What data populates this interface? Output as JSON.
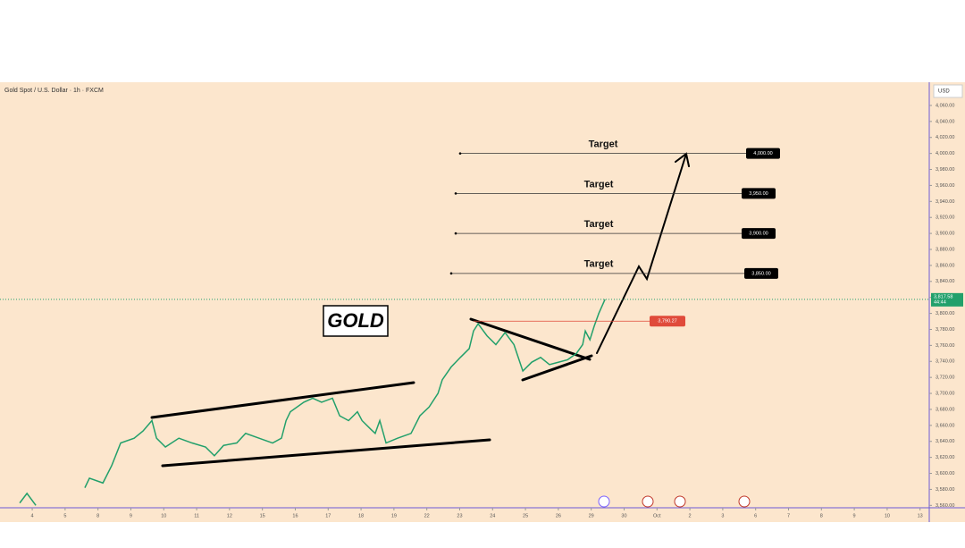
{
  "header": {
    "title": "Gold Spot / U.S. Dollar · 1h · FXCM",
    "currency": "USD"
  },
  "annotation": "GOLD",
  "chart_data": {
    "type": "line",
    "xlim": [
      -0.98,
      27.28
    ],
    "ylim": [
      3557,
      4089
    ],
    "xticks": [
      {
        "value": 0,
        "label": "4"
      },
      {
        "value": 1,
        "label": "5"
      },
      {
        "value": 2,
        "label": "8"
      },
      {
        "value": 3,
        "label": "9"
      },
      {
        "value": 4,
        "label": "10"
      },
      {
        "value": 5,
        "label": "11"
      },
      {
        "value": 6,
        "label": "12"
      },
      {
        "value": 7,
        "label": "15"
      },
      {
        "value": 8,
        "label": "16"
      },
      {
        "value": 9,
        "label": "17"
      },
      {
        "value": 10,
        "label": "18"
      },
      {
        "value": 11,
        "label": "19"
      },
      {
        "value": 12,
        "label": "22"
      },
      {
        "value": 13,
        "label": "23"
      },
      {
        "value": 14,
        "label": "24"
      },
      {
        "value": 15,
        "label": "25"
      },
      {
        "value": 16,
        "label": "26"
      },
      {
        "value": 17,
        "label": "29"
      },
      {
        "value": 18,
        "label": "30"
      },
      {
        "value": 19,
        "label": "Oct"
      },
      {
        "value": 20,
        "label": "2"
      },
      {
        "value": 21,
        "label": "3"
      },
      {
        "value": 22,
        "label": "6"
      },
      {
        "value": 23,
        "label": "7"
      },
      {
        "value": 24,
        "label": "8"
      },
      {
        "value": 25,
        "label": "9"
      },
      {
        "value": 26,
        "label": "10"
      },
      {
        "value": 27,
        "label": "13"
      }
    ],
    "yticks": [
      {
        "value": 3560,
        "label": "3,560.00"
      },
      {
        "value": 3580,
        "label": "3,580.00"
      },
      {
        "value": 3600,
        "label": "3,600.00"
      },
      {
        "value": 3620,
        "label": "3,620.00"
      },
      {
        "value": 3640,
        "label": "3,640.00"
      },
      {
        "value": 3660,
        "label": "3,660.00"
      },
      {
        "value": 3680,
        "label": "3,680.00"
      },
      {
        "value": 3700,
        "label": "3,700.00"
      },
      {
        "value": 3720,
        "label": "3,720.00"
      },
      {
        "value": 3740,
        "label": "3,740.00"
      },
      {
        "value": 3760,
        "label": "3,760.00"
      },
      {
        "value": 3780,
        "label": "3,780.00"
      },
      {
        "value": 3800,
        "label": "3,800.00"
      },
      {
        "value": 3820,
        "label": "3,820.00"
      },
      {
        "value": 3840,
        "label": "3,840.00"
      },
      {
        "value": 3860,
        "label": "3,860.00"
      },
      {
        "value": 3880,
        "label": "3,880.00"
      },
      {
        "value": 3900,
        "label": "3,900.00"
      },
      {
        "value": 3920,
        "label": "3,920.00"
      },
      {
        "value": 3940,
        "label": "3,940.00"
      },
      {
        "value": 3960,
        "label": "3,960.00"
      },
      {
        "value": 3980,
        "label": "3,980.00"
      },
      {
        "value": 4000,
        "label": "4,000.00"
      },
      {
        "value": 4020,
        "label": "4,020.00"
      },
      {
        "value": 4040,
        "label": "4,040.00"
      },
      {
        "value": 4060,
        "label": "4,060.00"
      }
    ],
    "series": [
      {
        "color": "#22a06b",
        "x": [
          -0.38,
          -0.16,
          0.11,
          null,
          1.6,
          1.74,
          2.15,
          2.42,
          2.69,
          3.1,
          3.37,
          3.64,
          3.78,
          4.05,
          4.46,
          4.86,
          5.27,
          5.54,
          5.82,
          6.22,
          6.49,
          6.9,
          7.31,
          7.58,
          7.72,
          7.85,
          8.26,
          8.53,
          8.8,
          9.13,
          9.35,
          9.62,
          9.89,
          10.03,
          10.3,
          10.43,
          10.57,
          10.76,
          11.11,
          11.52,
          11.79,
          12.07,
          12.34,
          12.47,
          12.74,
          13.02,
          13.29,
          13.42,
          13.56,
          13.83,
          14.1,
          14.38,
          14.65,
          14.78,
          14.92,
          15.19,
          15.46,
          15.73,
          16.01,
          16.28,
          16.55,
          16.74,
          16.82,
          16.96,
          17.09,
          17.23,
          17.42
        ],
        "values": [
          3563,
          3575,
          3560,
          null,
          3582,
          3594,
          3588,
          3610,
          3638,
          3644,
          3653,
          3666,
          3644,
          3633,
          3644,
          3638,
          3633,
          3622,
          3635,
          3638,
          3650,
          3644,
          3638,
          3644,
          3666,
          3677,
          3689,
          3694,
          3689,
          3694,
          3672,
          3666,
          3677,
          3666,
          3655,
          3650,
          3666,
          3638,
          3644,
          3650,
          3672,
          3683,
          3700,
          3717,
          3733,
          3745,
          3756,
          3778,
          3787,
          3772,
          3761,
          3776,
          3761,
          3745,
          3728,
          3739,
          3745,
          3736,
          3739,
          3742,
          3750,
          3761,
          3778,
          3767,
          3784,
          3800,
          3817.58
        ]
      }
    ],
    "current_price": {
      "value": 3817.58,
      "label": "3,817.58",
      "countdown": "44:44"
    },
    "level": {
      "value": 3790.27,
      "label": "3,790.27"
    },
    "targets": [
      {
        "text": "Target",
        "value": 4000,
        "label": "4,000.00"
      },
      {
        "text": "Target",
        "value": 3950,
        "label": "3,950.00"
      },
      {
        "text": "Target",
        "value": 3900,
        "label": "3,900.00"
      },
      {
        "text": "Target",
        "value": 3850,
        "label": "3,850.00"
      }
    ]
  }
}
